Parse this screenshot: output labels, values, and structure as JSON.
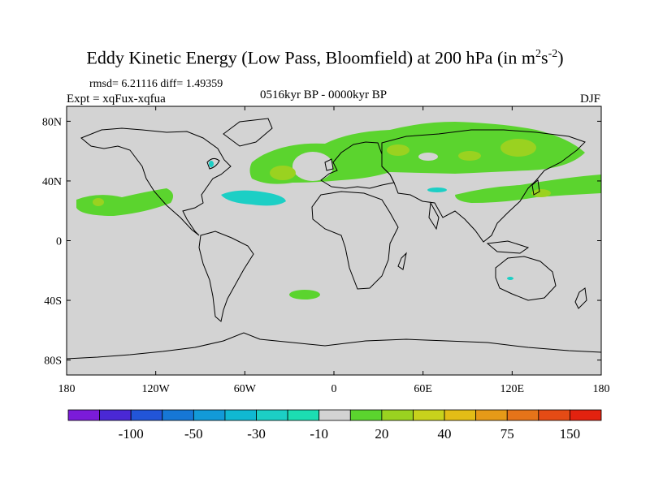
{
  "title": {
    "main": "Eddy Kinetic Energy (Low Pass, Bloomfield) at 200 hPa (in m",
    "sup1": "2",
    "mid": "s",
    "sup2": "-2",
    "end": ")"
  },
  "stats": "rmsd= 6.21116 diff= 1.49359",
  "experiment": "Expt = xqFux-xqfua",
  "period": "0516kyr BP - 0000kyr BP",
  "season": "DJF",
  "map": {
    "ocean_color": "#d3d3d3",
    "coast_color": "#000000",
    "y_ticks": [
      {
        "label": "80N",
        "lat": 80
      },
      {
        "label": "40N",
        "lat": 40
      },
      {
        "label": "0",
        "lat": 0
      },
      {
        "label": "40S",
        "lat": -40
      },
      {
        "label": "80S",
        "lat": -80
      }
    ],
    "x_ticks": [
      {
        "label": "180",
        "lon": -180
      },
      {
        "label": "120W",
        "lon": -120
      },
      {
        "label": "60W",
        "lon": -60
      },
      {
        "label": "0",
        "lon": 0
      },
      {
        "label": "60E",
        "lon": 60
      },
      {
        "label": "120E",
        "lon": 120
      },
      {
        "label": "180",
        "lon": 180
      }
    ]
  },
  "colorbar": {
    "colors": [
      "#7b1bd9",
      "#4a28d5",
      "#2255d8",
      "#1677d6",
      "#129ad8",
      "#10b8d2",
      "#1ccfc5",
      "#1cddb2",
      "#d3d3d3",
      "#5bd42e",
      "#9ad220",
      "#c8d21c",
      "#e3bd16",
      "#e69a18",
      "#e67419",
      "#e54b15",
      "#e2220f"
    ],
    "labels": [
      {
        "text": "-100",
        "boundary": 2
      },
      {
        "text": "-50",
        "boundary": 4
      },
      {
        "text": "-30",
        "boundary": 6
      },
      {
        "text": "-10",
        "boundary": 8
      },
      {
        "text": "20",
        "boundary": 10
      },
      {
        "text": "40",
        "boundary": 12
      },
      {
        "text": "75",
        "boundary": 14
      },
      {
        "text": "150",
        "boundary": 16
      }
    ]
  }
}
